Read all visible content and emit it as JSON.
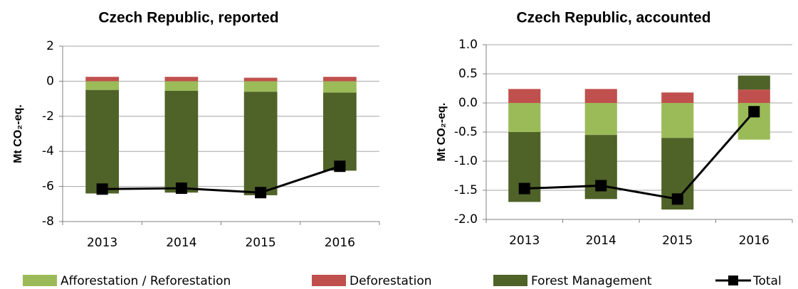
{
  "chart_data": [
    {
      "type": "bar",
      "stacked": true,
      "title": "Czech Republic, reported",
      "y_label": "Mt CO₂-eq.",
      "categories": [
        "2013",
        "2014",
        "2015",
        "2016"
      ],
      "series": [
        {
          "name": "Afforestation / Reforestation",
          "color": "#9bbb59",
          "values": [
            -0.5,
            -0.55,
            -0.6,
            -0.65
          ]
        },
        {
          "name": "Deforestation",
          "color": "#c0504d",
          "values": [
            0.25,
            0.25,
            0.2,
            0.25
          ]
        },
        {
          "name": "Forest Management",
          "color": "#4f6228",
          "values": [
            -5.9,
            -5.8,
            -5.9,
            -4.45
          ]
        },
        {
          "name": "Total",
          "type": "line",
          "color": "#000000",
          "values": [
            -6.15,
            -6.1,
            -6.35,
            -4.85
          ]
        }
      ],
      "ylim": [
        -8,
        2
      ],
      "yticks": [
        -8,
        -6,
        -4,
        -2,
        0,
        2
      ],
      "grid": true
    },
    {
      "type": "bar",
      "stacked": true,
      "title": "Czech Republic, accounted",
      "y_label": "Mt CO₂-eq.",
      "categories": [
        "2013",
        "2014",
        "2015",
        "2016"
      ],
      "series": [
        {
          "color": "#9bbb59",
          "values": [
            -0.5,
            -0.55,
            -0.6,
            -0.63
          ]
        },
        {
          "color": "#c0504d",
          "values": [
            0.24,
            0.24,
            0.18,
            0.23
          ]
        },
        {
          "color": "#4f6228",
          "values": [
            -1.2,
            -1.1,
            -1.23,
            0.24
          ]
        },
        {
          "type": "line",
          "color": "#000000",
          "values": [
            -1.47,
            -1.42,
            -1.65,
            -0.15
          ]
        }
      ],
      "ylim": [
        -2,
        1
      ],
      "yticks": [
        {
          "value": -2,
          "label": "-2.0"
        },
        -1.5,
        {
          "value": -1,
          "label": "-1.0"
        },
        -0.5,
        {
          "value": 0,
          "label": "0.0"
        },
        0.5,
        {
          "value": 1,
          "label": "1.0"
        }
      ],
      "grid": true
    }
  ]
}
